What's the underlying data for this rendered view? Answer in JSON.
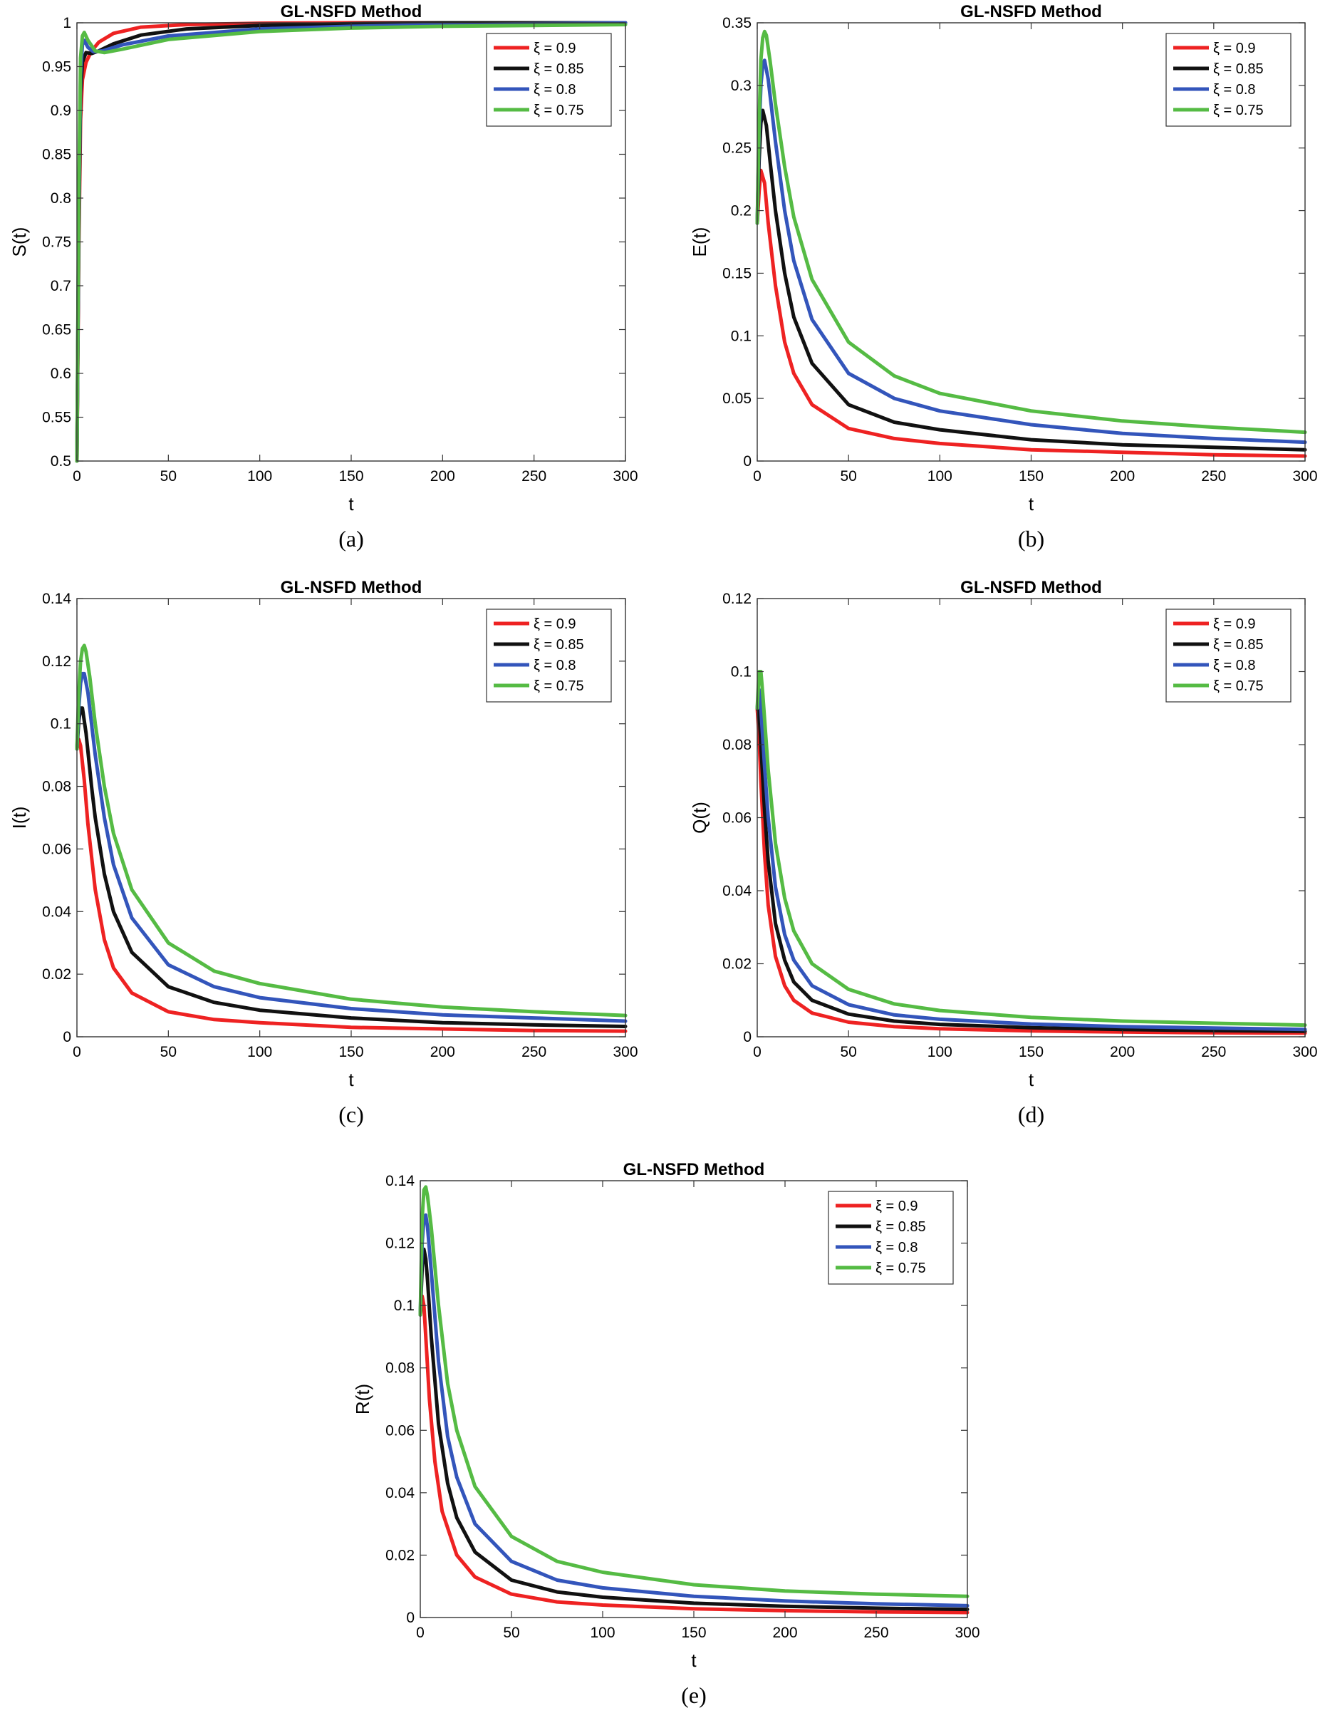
{
  "figure": {
    "captions": [
      "(a)",
      "(b)",
      "(c)",
      "(d)",
      "(e)"
    ]
  },
  "chart_data": [
    {
      "type": "line",
      "panel": "a",
      "title": "GL-NSFD Method",
      "xlabel": "t",
      "ylabel": "S(t)",
      "xlim": [
        0,
        300
      ],
      "ylim": [
        0.5,
        1
      ],
      "xticks": [
        0,
        50,
        100,
        150,
        200,
        250,
        300
      ],
      "xtick_labels": [
        "0",
        "50",
        "100",
        "150",
        "200",
        "250",
        "300"
      ],
      "yticks": [
        0.5,
        0.55,
        0.6,
        0.65,
        0.7,
        0.75,
        0.8,
        0.85,
        0.9,
        0.95,
        1
      ],
      "ytick_labels": [
        "0.5",
        "0.55",
        "0.6",
        "0.65",
        "0.7",
        "0.75",
        "0.8",
        "0.85",
        "0.9",
        "0.95",
        "1"
      ],
      "legend_position": "top-right",
      "series": [
        {
          "name": "ξ = 0.9",
          "color": "#ee2222",
          "x": [
            0,
            1,
            2,
            3,
            5,
            8,
            12,
            20,
            35,
            60,
            100,
            150,
            200,
            300
          ],
          "y": [
            0.5,
            0.74,
            0.89,
            0.935,
            0.955,
            0.968,
            0.978,
            0.988,
            0.995,
            0.998,
            0.9995,
            1.0,
            1.0,
            1.0
          ]
        },
        {
          "name": "ξ = 0.85",
          "color": "#111111",
          "x": [
            0,
            1,
            2,
            3,
            5,
            8,
            12,
            20,
            35,
            60,
            100,
            150,
            200,
            300
          ],
          "y": [
            0.5,
            0.76,
            0.92,
            0.955,
            0.966,
            0.965,
            0.968,
            0.976,
            0.986,
            0.993,
            0.997,
            0.999,
            1.0,
            1.0
          ]
        },
        {
          "name": "ξ = 0.8",
          "color": "#3355bb",
          "x": [
            0,
            1,
            2,
            3,
            4,
            6,
            9,
            14,
            25,
            50,
            100,
            150,
            200,
            300
          ],
          "y": [
            0.5,
            0.78,
            0.94,
            0.975,
            0.98,
            0.972,
            0.967,
            0.968,
            0.975,
            0.985,
            0.993,
            0.996,
            0.998,
            1.0
          ]
        },
        {
          "name": "ξ = 0.75",
          "color": "#55bb44",
          "x": [
            0,
            1,
            2,
            3,
            4,
            6,
            10,
            15,
            25,
            50,
            100,
            150,
            200,
            300
          ],
          "y": [
            0.5,
            0.8,
            0.96,
            0.985,
            0.989,
            0.98,
            0.968,
            0.966,
            0.97,
            0.981,
            0.99,
            0.994,
            0.996,
            0.998
          ]
        }
      ]
    },
    {
      "type": "line",
      "panel": "b",
      "title": "GL-NSFD Method",
      "xlabel": "t",
      "ylabel": "E(t)",
      "xlim": [
        0,
        300
      ],
      "ylim": [
        0,
        0.35
      ],
      "xticks": [
        0,
        50,
        100,
        150,
        200,
        250,
        300
      ],
      "xtick_labels": [
        "0",
        "50",
        "100",
        "150",
        "200",
        "250",
        "300"
      ],
      "yticks": [
        0,
        0.05,
        0.1,
        0.15,
        0.2,
        0.25,
        0.3,
        0.35
      ],
      "ytick_labels": [
        "0",
        "0.05",
        "0.1",
        "0.15",
        "0.2",
        "0.25",
        "0.3",
        "0.35"
      ],
      "legend_position": "top-right",
      "series": [
        {
          "name": "ξ = 0.9",
          "color": "#ee2222",
          "x": [
            0,
            1,
            2,
            4,
            6,
            10,
            15,
            20,
            30,
            50,
            75,
            100,
            150,
            200,
            250,
            300
          ],
          "y": [
            0.19,
            0.215,
            0.232,
            0.222,
            0.19,
            0.14,
            0.095,
            0.07,
            0.045,
            0.026,
            0.018,
            0.014,
            0.009,
            0.007,
            0.005,
            0.004
          ]
        },
        {
          "name": "ξ = 0.85",
          "color": "#111111",
          "x": [
            0,
            1,
            2,
            3,
            5,
            7,
            10,
            15,
            20,
            30,
            50,
            75,
            100,
            150,
            200,
            250,
            300
          ],
          "y": [
            0.19,
            0.24,
            0.27,
            0.28,
            0.268,
            0.24,
            0.2,
            0.15,
            0.115,
            0.078,
            0.045,
            0.031,
            0.025,
            0.017,
            0.013,
            0.011,
            0.009
          ]
        },
        {
          "name": "ξ = 0.8",
          "color": "#3355bb",
          "x": [
            0,
            1,
            2,
            3,
            4,
            6,
            8,
            10,
            15,
            20,
            30,
            50,
            75,
            100,
            150,
            200,
            250,
            300
          ],
          "y": [
            0.19,
            0.26,
            0.3,
            0.316,
            0.32,
            0.305,
            0.28,
            0.255,
            0.2,
            0.16,
            0.113,
            0.07,
            0.05,
            0.04,
            0.029,
            0.022,
            0.018,
            0.015
          ]
        },
        {
          "name": "ξ = 0.75",
          "color": "#55bb44",
          "x": [
            0,
            1,
            2,
            3,
            4,
            5,
            7,
            10,
            15,
            20,
            30,
            50,
            75,
            100,
            150,
            200,
            250,
            300
          ],
          "y": [
            0.19,
            0.27,
            0.32,
            0.338,
            0.343,
            0.34,
            0.32,
            0.285,
            0.235,
            0.195,
            0.145,
            0.095,
            0.068,
            0.054,
            0.04,
            0.032,
            0.027,
            0.023
          ]
        }
      ]
    },
    {
      "type": "line",
      "panel": "c",
      "title": "GL-NSFD Method",
      "xlabel": "t",
      "ylabel": "I(t)",
      "xlim": [
        0,
        300
      ],
      "ylim": [
        0,
        0.14
      ],
      "xticks": [
        0,
        50,
        100,
        150,
        200,
        250,
        300
      ],
      "xtick_labels": [
        "0",
        "50",
        "100",
        "150",
        "200",
        "250",
        "300"
      ],
      "yticks": [
        0,
        0.02,
        0.04,
        0.06,
        0.08,
        0.1,
        0.12,
        0.14
      ],
      "ytick_labels": [
        "0",
        "0.02",
        "0.04",
        "0.06",
        "0.08",
        "0.1",
        "0.12",
        "0.14"
      ],
      "legend_position": "top-right",
      "series": [
        {
          "name": "ξ = 0.9",
          "color": "#ee2222",
          "x": [
            0,
            1,
            2,
            4,
            6,
            10,
            15,
            20,
            30,
            50,
            75,
            100,
            150,
            200,
            250,
            300
          ],
          "y": [
            0.092,
            0.095,
            0.093,
            0.082,
            0.068,
            0.047,
            0.031,
            0.022,
            0.014,
            0.008,
            0.0055,
            0.0045,
            0.003,
            0.0025,
            0.002,
            0.0018
          ]
        },
        {
          "name": "ξ = 0.85",
          "color": "#111111",
          "x": [
            0,
            1,
            2,
            3,
            5,
            8,
            10,
            15,
            20,
            30,
            50,
            75,
            100,
            150,
            200,
            250,
            300
          ],
          "y": [
            0.092,
            0.101,
            0.105,
            0.105,
            0.097,
            0.08,
            0.07,
            0.052,
            0.04,
            0.027,
            0.016,
            0.011,
            0.0085,
            0.006,
            0.0045,
            0.0038,
            0.0033
          ]
        },
        {
          "name": "ξ = 0.8",
          "color": "#3355bb",
          "x": [
            0,
            1,
            2,
            3,
            4,
            6,
            8,
            10,
            15,
            20,
            30,
            50,
            75,
            100,
            150,
            200,
            250,
            300
          ],
          "y": [
            0.092,
            0.105,
            0.113,
            0.116,
            0.116,
            0.11,
            0.1,
            0.09,
            0.07,
            0.055,
            0.038,
            0.023,
            0.016,
            0.0125,
            0.009,
            0.007,
            0.006,
            0.005
          ]
        },
        {
          "name": "ξ = 0.75",
          "color": "#55bb44",
          "x": [
            0,
            1,
            2,
            3,
            4,
            5,
            7,
            10,
            15,
            20,
            30,
            50,
            75,
            100,
            150,
            200,
            250,
            300
          ],
          "y": [
            0.092,
            0.11,
            0.12,
            0.124,
            0.125,
            0.123,
            0.115,
            0.1,
            0.08,
            0.065,
            0.047,
            0.03,
            0.021,
            0.017,
            0.012,
            0.0095,
            0.008,
            0.0068
          ]
        }
      ]
    },
    {
      "type": "line",
      "panel": "d",
      "title": "GL-NSFD Method",
      "xlabel": "t",
      "ylabel": "Q(t)",
      "xlim": [
        0,
        300
      ],
      "ylim": [
        0,
        0.12
      ],
      "xticks": [
        0,
        50,
        100,
        150,
        200,
        250,
        300
      ],
      "xtick_labels": [
        "0",
        "50",
        "100",
        "150",
        "200",
        "250",
        "300"
      ],
      "yticks": [
        0,
        0.02,
        0.04,
        0.06,
        0.08,
        0.1,
        0.12
      ],
      "ytick_labels": [
        "0",
        "0.02",
        "0.04",
        "0.06",
        "0.08",
        "0.1",
        "0.12"
      ],
      "legend_position": "top-right",
      "series": [
        {
          "name": "ξ = 0.9",
          "color": "#ee2222",
          "x": [
            0,
            1,
            2,
            4,
            6,
            10,
            15,
            20,
            30,
            50,
            75,
            100,
            150,
            200,
            250,
            300
          ],
          "y": [
            0.09,
            0.082,
            0.07,
            0.05,
            0.036,
            0.022,
            0.014,
            0.01,
            0.0065,
            0.004,
            0.0028,
            0.0022,
            0.0016,
            0.0013,
            0.0011,
            0.001
          ]
        },
        {
          "name": "ξ = 0.85",
          "color": "#111111",
          "x": [
            0,
            1,
            2,
            4,
            6,
            10,
            15,
            20,
            30,
            50,
            75,
            100,
            150,
            200,
            250,
            300
          ],
          "y": [
            0.09,
            0.089,
            0.08,
            0.062,
            0.048,
            0.031,
            0.021,
            0.015,
            0.01,
            0.0062,
            0.0043,
            0.0034,
            0.0025,
            0.002,
            0.0017,
            0.0015
          ]
        },
        {
          "name": "ξ = 0.8",
          "color": "#3355bb",
          "x": [
            0,
            1,
            2,
            3,
            4,
            6,
            10,
            15,
            20,
            30,
            50,
            75,
            100,
            150,
            200,
            250,
            300
          ],
          "y": [
            0.09,
            0.095,
            0.09,
            0.082,
            0.074,
            0.06,
            0.041,
            0.028,
            0.021,
            0.014,
            0.0088,
            0.006,
            0.0048,
            0.0035,
            0.0028,
            0.0024,
            0.002
          ]
        },
        {
          "name": "ξ = 0.75",
          "color": "#55bb44",
          "x": [
            0,
            1,
            2,
            3,
            4,
            6,
            10,
            15,
            20,
            30,
            50,
            75,
            100,
            150,
            200,
            250,
            300
          ],
          "y": [
            0.09,
            0.1,
            0.1,
            0.094,
            0.087,
            0.073,
            0.053,
            0.038,
            0.029,
            0.02,
            0.013,
            0.009,
            0.0072,
            0.0053,
            0.0043,
            0.0037,
            0.0032
          ]
        }
      ]
    },
    {
      "type": "line",
      "panel": "e",
      "title": "GL-NSFD Method",
      "xlabel": "t",
      "ylabel": "R(t)",
      "xlim": [
        0,
        300
      ],
      "ylim": [
        0,
        0.14
      ],
      "xticks": [
        0,
        50,
        100,
        150,
        200,
        250,
        300
      ],
      "xtick_labels": [
        "0",
        "50",
        "100",
        "150",
        "200",
        "250",
        "300"
      ],
      "yticks": [
        0,
        0.02,
        0.04,
        0.06,
        0.08,
        0.1,
        0.12,
        0.14
      ],
      "ytick_labels": [
        "0",
        "0.02",
        "0.04",
        "0.06",
        "0.08",
        "0.1",
        "0.12",
        "0.14"
      ],
      "legend_position": "top-right",
      "series": [
        {
          "name": "ξ = 0.9",
          "color": "#ee2222",
          "x": [
            0,
            1,
            2,
            3,
            5,
            8,
            12,
            20,
            30,
            50,
            75,
            100,
            150,
            200,
            250,
            300
          ],
          "y": [
            0.097,
            0.103,
            0.1,
            0.09,
            0.07,
            0.05,
            0.034,
            0.02,
            0.013,
            0.0075,
            0.005,
            0.004,
            0.0028,
            0.0022,
            0.0018,
            0.0016
          ]
        },
        {
          "name": "ξ = 0.85",
          "color": "#111111",
          "x": [
            0,
            1,
            2,
            3,
            4,
            6,
            10,
            15,
            20,
            30,
            50,
            75,
            100,
            150,
            200,
            250,
            300
          ],
          "y": [
            0.097,
            0.112,
            0.118,
            0.115,
            0.108,
            0.09,
            0.062,
            0.043,
            0.032,
            0.021,
            0.012,
            0.0082,
            0.0065,
            0.0046,
            0.0036,
            0.003,
            0.0026
          ]
        },
        {
          "name": "ξ = 0.8",
          "color": "#3355bb",
          "x": [
            0,
            1,
            2,
            3,
            4,
            6,
            10,
            15,
            20,
            30,
            50,
            75,
            100,
            150,
            200,
            250,
            300
          ],
          "y": [
            0.097,
            0.12,
            0.128,
            0.129,
            0.125,
            0.111,
            0.082,
            0.058,
            0.045,
            0.03,
            0.018,
            0.012,
            0.0095,
            0.0068,
            0.0053,
            0.0044,
            0.0038
          ]
        },
        {
          "name": "ξ = 0.75",
          "color": "#55bb44",
          "x": [
            0,
            1,
            2,
            3,
            4,
            6,
            10,
            15,
            20,
            30,
            50,
            75,
            100,
            150,
            200,
            250,
            300
          ],
          "y": [
            0.097,
            0.128,
            0.137,
            0.138,
            0.135,
            0.125,
            0.1,
            0.075,
            0.06,
            0.042,
            0.026,
            0.018,
            0.0145,
            0.0105,
            0.0085,
            0.0075,
            0.0068
          ]
        }
      ]
    }
  ]
}
